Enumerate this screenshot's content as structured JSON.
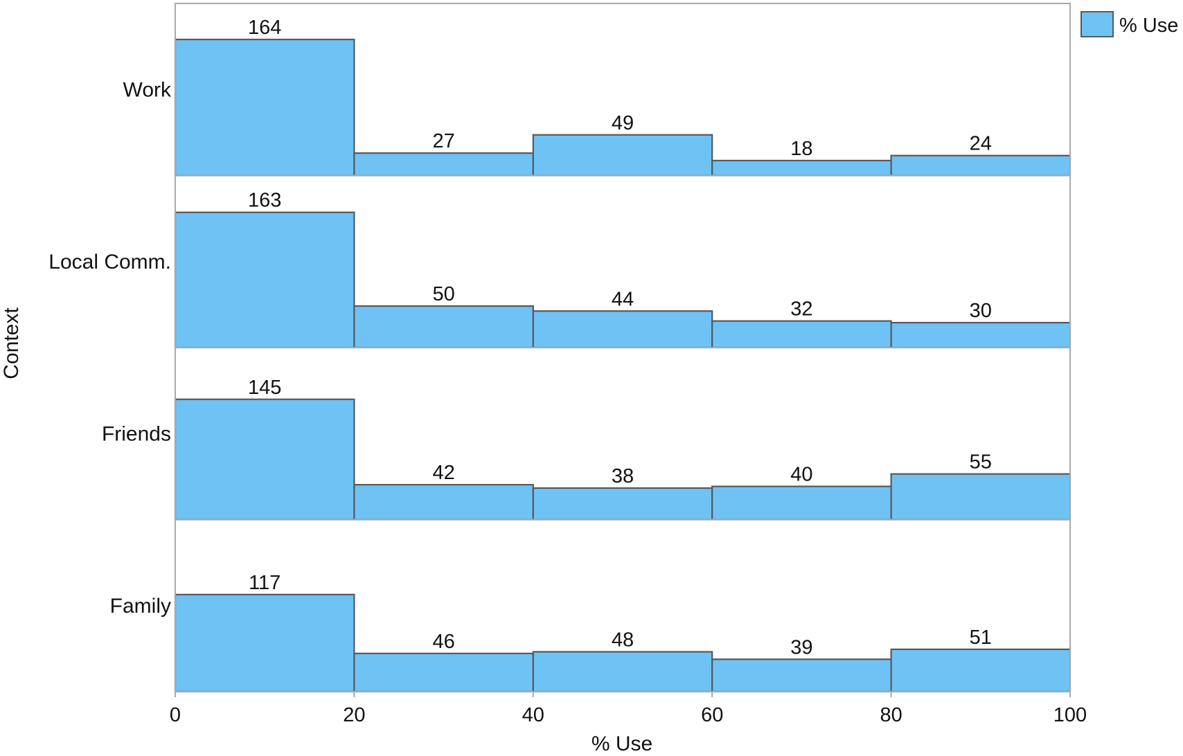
{
  "chart_data": {
    "type": "bar",
    "title": "",
    "xlabel": "% Use",
    "ylabel": "Context",
    "xlim": [
      0,
      100
    ],
    "x_ticks": [
      "0",
      "20",
      "40",
      "60",
      "80",
      "100"
    ],
    "bins": [
      [
        0,
        20
      ],
      [
        20,
        40
      ],
      [
        40,
        60
      ],
      [
        60,
        80
      ],
      [
        80,
        100
      ]
    ],
    "count_max": 164,
    "legend": {
      "label": "% Use",
      "placement": "top-right"
    },
    "grid": false,
    "colors": {
      "bar_fill": "#6fc3f4",
      "bar_stroke": "#55595d",
      "frame": "#a9a9a9"
    },
    "panels": [
      {
        "category": "Work",
        "values": [
          164,
          27,
          49,
          18,
          24
        ]
      },
      {
        "category": "Local Comm.",
        "values": [
          163,
          50,
          44,
          32,
          30
        ]
      },
      {
        "category": "Friends",
        "values": [
          145,
          42,
          38,
          40,
          55
        ]
      },
      {
        "category": "Family",
        "values": [
          117,
          46,
          48,
          39,
          51
        ]
      }
    ]
  }
}
